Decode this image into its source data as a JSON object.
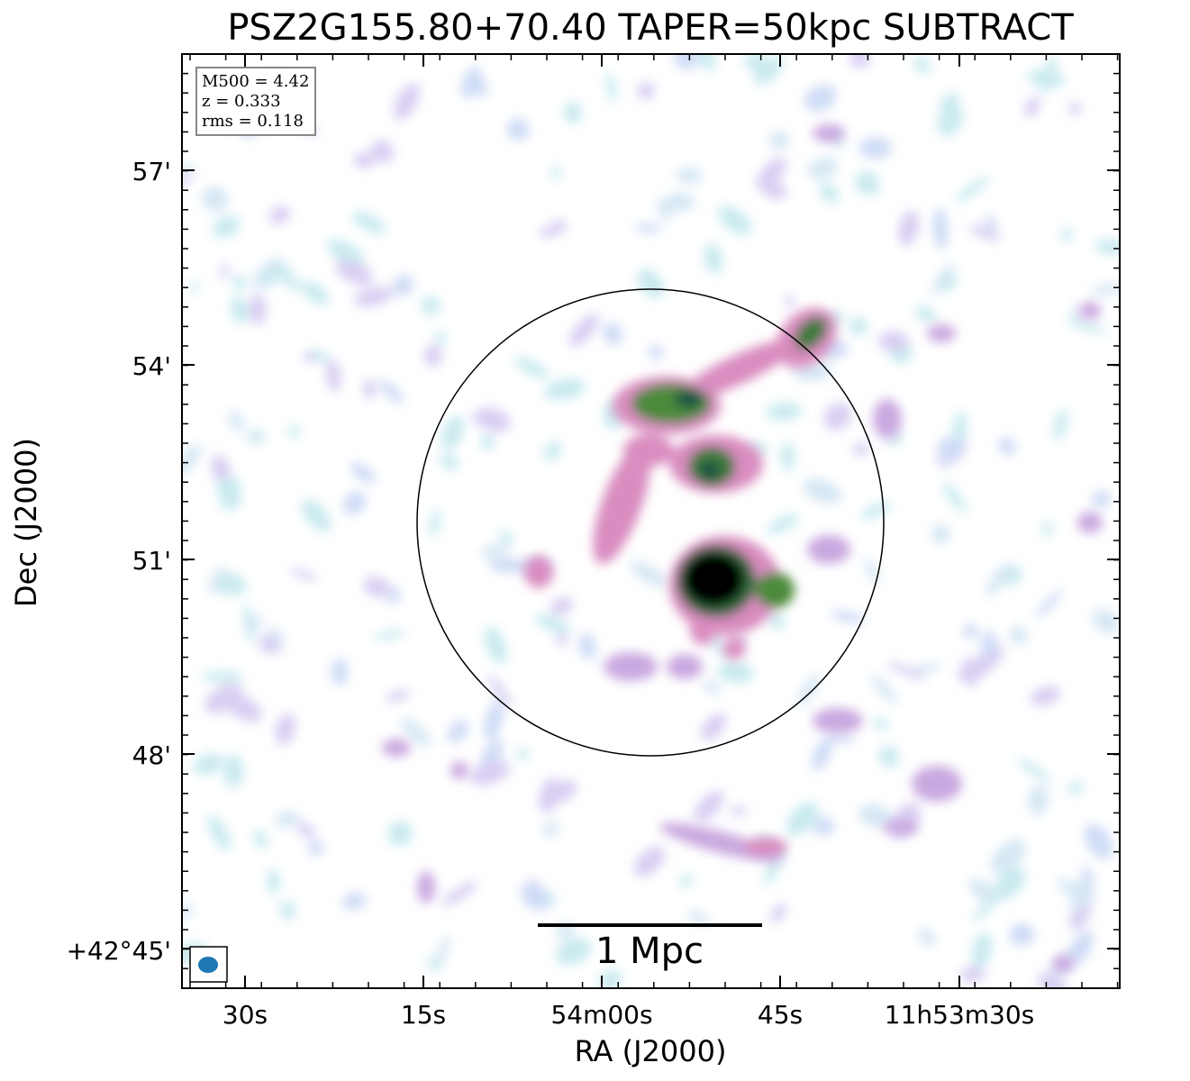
{
  "title": "PSZ2G155.80+70.40 TAPER=50kpc SUBTRACT",
  "info": {
    "mass": "M500 = 4.42",
    "redshift": "z = 0.333",
    "rms": "rms = 0.118"
  },
  "axes": {
    "x_title": "RA (J2000)",
    "y_title": "Dec (J2000)",
    "x_ticks": [
      "30s",
      "15s",
      "54m00s",
      "45s",
      "11h53m30s"
    ],
    "y_ticks": [
      "57'",
      "54'",
      "51'",
      "48'",
      "+42°45'"
    ]
  },
  "scalebar": {
    "label": "1 Mpc"
  },
  "colors": {
    "frame": "#000000",
    "beam": "#1f77b4",
    "emission_low": "#bfe6ec",
    "emission_mid": "#d98cc0",
    "emission_high": "#2e6b3a",
    "emission_peak": "#000000"
  }
}
